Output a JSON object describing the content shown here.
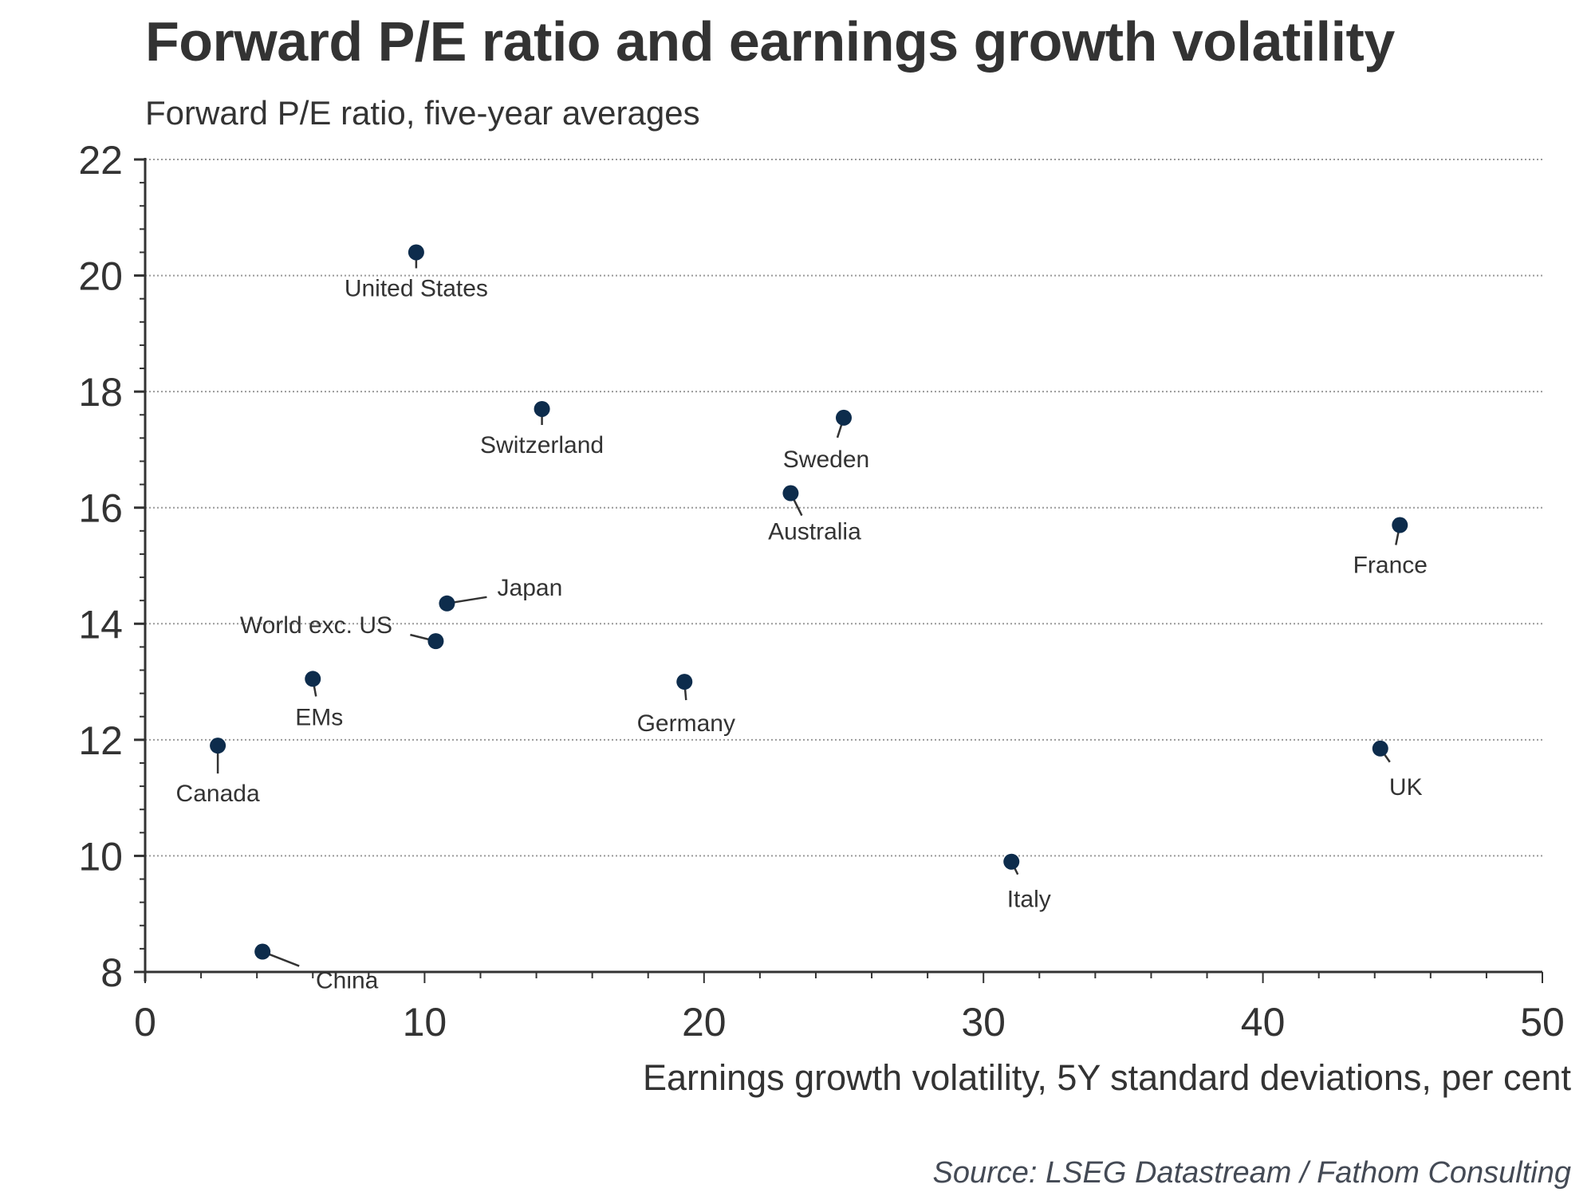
{
  "chart_data": {
    "type": "scatter",
    "title": "Forward P/E ratio and earnings growth volatility",
    "subtitle": "Forward P/E ratio, five-year averages",
    "xlabel": "Earnings growth volatility, 5Y standard deviations, per cent",
    "ylabel": "Forward P/E ratio, five-year averages",
    "source": "Source: LSEG Datastream / Fathom Consulting",
    "xlim": [
      0,
      50
    ],
    "ylim": [
      8,
      22
    ],
    "x_ticks": [
      "0",
      "10",
      "20",
      "30",
      "40",
      "50"
    ],
    "y_ticks": [
      "8",
      "10",
      "12",
      "14",
      "16",
      "18",
      "20",
      "22"
    ],
    "grid": "horizontal dotted",
    "marker_color": "#0d2c4c",
    "points": [
      {
        "label": "United States",
        "x": 9.7,
        "y": 20.4
      },
      {
        "label": "Switzerland",
        "x": 14.2,
        "y": 17.7
      },
      {
        "label": "Sweden",
        "x": 25.0,
        "y": 17.55
      },
      {
        "label": "Australia",
        "x": 23.1,
        "y": 16.25
      },
      {
        "label": "France",
        "x": 44.9,
        "y": 15.7
      },
      {
        "label": "Japan",
        "x": 10.8,
        "y": 14.35
      },
      {
        "label": "World exc. US",
        "x": 10.4,
        "y": 13.7
      },
      {
        "label": "EMs",
        "x": 6.0,
        "y": 13.05
      },
      {
        "label": "Germany",
        "x": 19.3,
        "y": 13.0
      },
      {
        "label": "Canada",
        "x": 2.6,
        "y": 11.9
      },
      {
        "label": "UK",
        "x": 44.2,
        "y": 11.85
      },
      {
        "label": "Italy",
        "x": 31.0,
        "y": 9.9
      },
      {
        "label": "China",
        "x": 4.2,
        "y": 8.35
      }
    ]
  }
}
